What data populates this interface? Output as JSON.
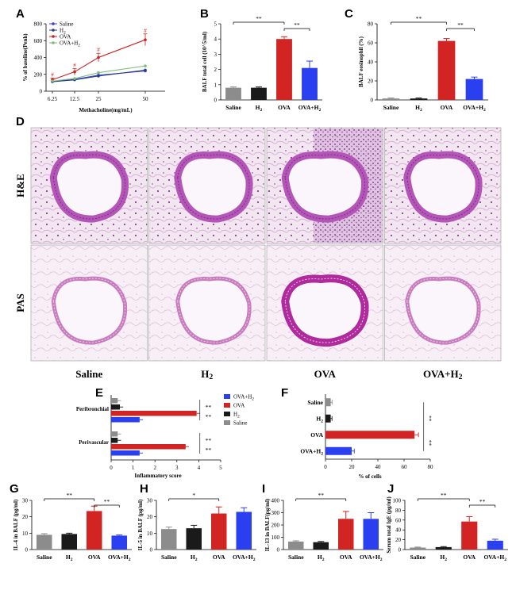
{
  "figure": {
    "panel_letters": [
      "A",
      "B",
      "C",
      "D",
      "E",
      "F",
      "G",
      "H",
      "I",
      "J"
    ],
    "colors": {
      "saline": "#8c8c8c",
      "h2": "#1a1a1a",
      "ova": "#d32424",
      "ova_h2": "#2a3ff0",
      "line_saline": "#3d3dd9",
      "line_h2": "#2b3a8a",
      "line_ova": "#cc2222",
      "line_ovah2": "#7abd7a"
    },
    "histology": {
      "row_labels": [
        "H&E",
        "PAS"
      ],
      "column_labels": [
        "Saline",
        "H2",
        "OVA",
        "OVA+H2"
      ]
    },
    "significance": {
      "double": "**",
      "single": "*"
    }
  },
  "chart_data": [
    {
      "panel": "A",
      "type": "line",
      "x": [
        6.25,
        12.5,
        25,
        50
      ],
      "tick_labels": [
        "6.25",
        "12.5",
        "25",
        "50"
      ],
      "xlabel": "Methacholine(mg/mL)",
      "ylabel": "% of baseline(Penh)",
      "ylim": [
        0,
        800
      ],
      "yticks": [
        0,
        200,
        400,
        600,
        800
      ],
      "series": [
        {
          "name": "Saline",
          "values": [
            115,
            140,
            190,
            240
          ]
        },
        {
          "name": "H2",
          "values": [
            112,
            135,
            180,
            250
          ]
        },
        {
          "name": "OVA",
          "values": [
            135,
            230,
            400,
            610
          ]
        },
        {
          "name": "OVA+H2",
          "values": [
            120,
            150,
            220,
            300
          ]
        }
      ],
      "errors": [
        20,
        40,
        50,
        70
      ],
      "annotations": [
        "#",
        "#",
        "#",
        "#"
      ],
      "legend": "top-left"
    },
    {
      "panel": "B",
      "type": "bar",
      "categories": [
        "Saline",
        "H2",
        "OVA",
        "OVA+H2"
      ],
      "values": [
        0.8,
        0.8,
        4.0,
        2.1
      ],
      "errors": [
        0.05,
        0.05,
        0.15,
        0.45
      ],
      "ylabel": "BALF total cell (10^5/ml)",
      "ylim": [
        0,
        5
      ],
      "yticks": [
        0,
        1,
        2,
        3,
        4,
        5
      ],
      "brackets": [
        [
          "Saline",
          "OVA",
          "**"
        ],
        [
          "OVA",
          "OVA+H2",
          "**"
        ]
      ]
    },
    {
      "panel": "C",
      "type": "bar",
      "categories": [
        "Saline",
        "H2",
        "OVA",
        "OVA+H2"
      ],
      "values": [
        1.5,
        1.5,
        62,
        22
      ],
      "errors": [
        0.5,
        0.5,
        2.5,
        2
      ],
      "ylabel": "BALF eosinophil (%)",
      "ylim": [
        0,
        80
      ],
      "yticks": [
        0,
        20,
        40,
        60,
        80
      ],
      "brackets": [
        [
          "Saline",
          "OVA",
          "**"
        ],
        [
          "OVA",
          "OVA+H2",
          "**"
        ]
      ]
    },
    {
      "panel": "E",
      "type": "bar",
      "orientation": "horizontal",
      "groups": [
        "Peribronchial",
        "Perivascular"
      ],
      "series": [
        {
          "name": "OVA+H2",
          "values": [
            1.3,
            1.3
          ]
        },
        {
          "name": "OVA",
          "values": [
            3.9,
            3.4
          ]
        },
        {
          "name": "H2",
          "values": [
            0.4,
            0.3
          ]
        },
        {
          "name": "Saline",
          "values": [
            0.3,
            0.3
          ]
        }
      ],
      "errors": [
        0.15,
        0.15
      ],
      "xlabel": "Inflammatory score",
      "xlim": [
        0,
        5
      ],
      "xticks": [
        0,
        1,
        2,
        3,
        4,
        5
      ],
      "legend": "top-right",
      "annotations": [
        "**",
        "**",
        "**",
        "**"
      ]
    },
    {
      "panel": "F",
      "type": "bar",
      "orientation": "horizontal",
      "categories": [
        "Saline",
        "H2",
        "OVA",
        "OVA+H2"
      ],
      "values": [
        4,
        4,
        68,
        20
      ],
      "errors": [
        1,
        1,
        3,
        2
      ],
      "xlabel": "% of cells",
      "xlim": [
        0,
        80
      ],
      "xticks": [
        0,
        20,
        40,
        60,
        80
      ],
      "annotations": [
        "**",
        "**"
      ]
    },
    {
      "panel": "G",
      "type": "bar",
      "categories": [
        "Saline",
        "H2",
        "OVA",
        "OVA+H2"
      ],
      "values": [
        9,
        9.5,
        23.5,
        8.5
      ],
      "errors": [
        0.7,
        0.5,
        3,
        0.4
      ],
      "ylabel": "IL-4 in BALF (pg/ml)",
      "ylim": [
        0,
        30
      ],
      "yticks": [
        0,
        10,
        20,
        30
      ],
      "brackets": [
        [
          "Saline",
          "OVA",
          "**"
        ],
        [
          "OVA",
          "OVA+H2",
          "**"
        ]
      ]
    },
    {
      "panel": "H",
      "type": "bar",
      "categories": [
        "Saline",
        "H2",
        "OVA",
        "OVA+H2"
      ],
      "values": [
        12.5,
        13,
        22,
        23
      ],
      "errors": [
        1.2,
        1.8,
        4,
        2.5
      ],
      "ylabel": "IL-5 in BALF (pg/ml)",
      "ylim": [
        0,
        30
      ],
      "yticks": [
        0,
        10,
        20,
        30
      ],
      "brackets": [
        [
          "Saline",
          "OVA",
          "*"
        ]
      ]
    },
    {
      "panel": "I",
      "type": "bar",
      "categories": [
        "Saline",
        "H2",
        "OVA",
        "OVA+H2"
      ],
      "values": [
        65,
        60,
        250,
        250
      ],
      "errors": [
        6,
        6,
        60,
        50
      ],
      "ylabel": "IL-13 in BALF(pg/ml)",
      "ylim": [
        0,
        400
      ],
      "yticks": [
        0,
        100,
        200,
        300,
        400
      ],
      "brackets": [
        [
          "Saline",
          "OVA",
          "**"
        ]
      ]
    },
    {
      "panel": "J",
      "type": "bar",
      "categories": [
        "Saline",
        "H2",
        "OVA",
        "OVA+H2"
      ],
      "values": [
        4,
        5,
        57,
        18
      ],
      "errors": [
        1,
        1,
        10,
        3
      ],
      "ylabel": "Serum total IgE (pg/ml)",
      "ylim": [
        0,
        100
      ],
      "yticks": [
        0,
        20,
        40,
        60,
        80,
        100
      ],
      "brackets": [
        [
          "Saline",
          "OVA",
          "**"
        ],
        [
          "OVA",
          "OVA+H2",
          "**"
        ]
      ]
    }
  ]
}
